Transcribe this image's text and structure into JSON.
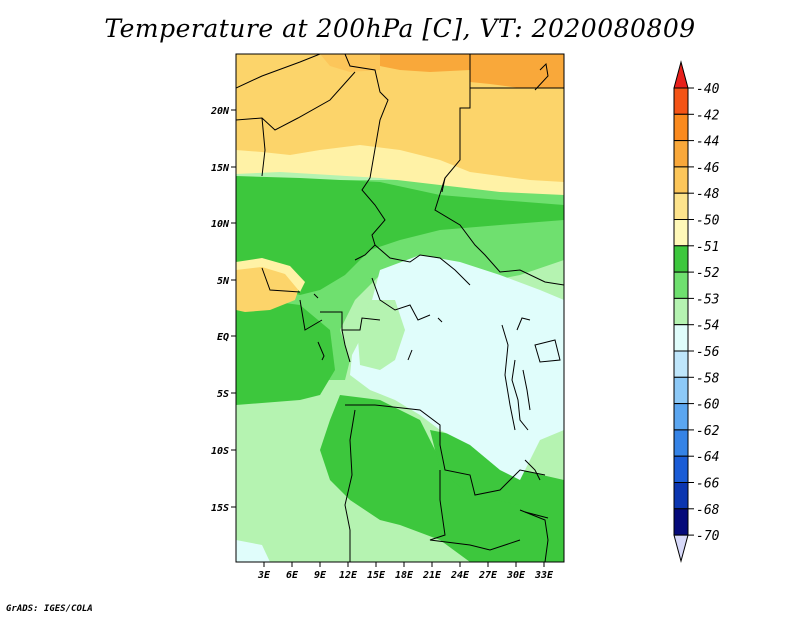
{
  "title": "Temperature at 200hPa [C], VT: 2020080809",
  "credit": "GrADS: IGES/COLA",
  "map": {
    "lat_labels": [
      "20N",
      "15N",
      "10N",
      "5N",
      "EQ",
      "5S",
      "10S",
      "15S"
    ],
    "lon_labels": [
      "3E",
      "6E",
      "9E",
      "12E",
      "15E",
      "18E",
      "21E",
      "24E",
      "27E",
      "30E",
      "33E"
    ]
  },
  "colors": {
    "orange": "#f9a83a",
    "yellow_dark": "#fcd46a",
    "yellow_light": "#fff2a6",
    "green_dark": "#3dc73d",
    "green_mid": "#6fe06f",
    "green_light": "#b5f3b1",
    "pale_cyan": "#e0fdfb"
  },
  "legend": {
    "labels": [
      "-40",
      "-42",
      "-44",
      "-46",
      "-48",
      "-50",
      "-51",
      "-52",
      "-53",
      "-54",
      "-56",
      "-58",
      "-60",
      "-62",
      "-64",
      "-66",
      "-68",
      "-70"
    ],
    "colors": [
      "#e8201b",
      "#f45416",
      "#fa8a1e",
      "#f9a83a",
      "#fcc65a",
      "#fde38c",
      "#fff8b8",
      "#3dc73d",
      "#6fe06f",
      "#b5f3b1",
      "#e0fdfb",
      "#bfe6fb",
      "#8dc9f7",
      "#5ba6f0",
      "#3583e6",
      "#1a5cd6",
      "#0b36b0",
      "#050a7a",
      "#d7d9f9"
    ]
  }
}
